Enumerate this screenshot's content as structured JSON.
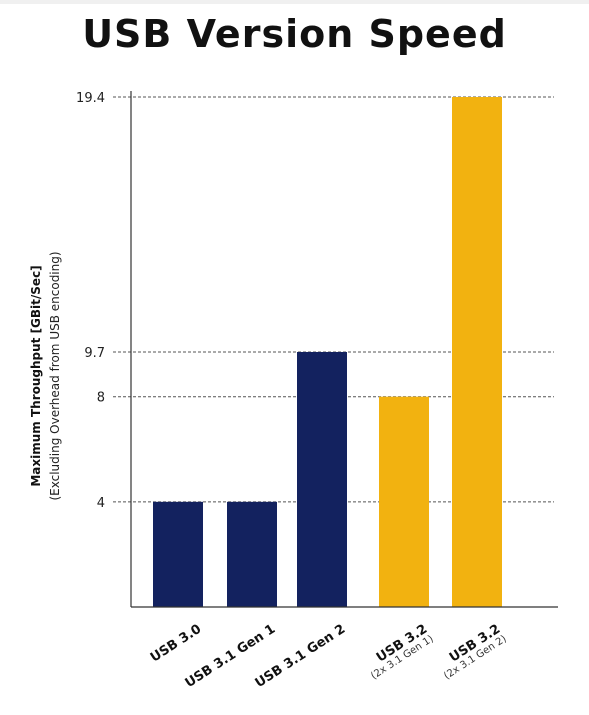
{
  "chart_data": {
    "type": "bar",
    "title": "USB Version Speed",
    "ylabel": "Maximum Throughput [GBit/Sec]",
    "ylabel_sub": "(Excluding Overhead from USB encoding)",
    "xlabel": "",
    "ylim": [
      0,
      19.4
    ],
    "ticks": [
      {
        "value": 4,
        "label": "4"
      },
      {
        "value": 8,
        "label": "8"
      },
      {
        "value": 9.7,
        "label": "9.7"
      },
      {
        "value": 19.4,
        "label": "19.4"
      }
    ],
    "grid": true,
    "categories": [
      {
        "label": "USB 3.0",
        "sub": ""
      },
      {
        "label": "USB 3.1 Gen 1",
        "sub": ""
      },
      {
        "label": "USB 3.1 Gen 2",
        "sub": ""
      },
      {
        "label": "USB 3.2",
        "sub": "(2x 3.1 Gen 1)"
      },
      {
        "label": "USB 3.2",
        "sub": "(2x 3.1 Gen 2)"
      }
    ],
    "values": [
      4,
      4,
      9.7,
      8,
      19.4
    ],
    "colors": [
      "#13225f",
      "#13225f",
      "#13225f",
      "#f2b210",
      "#f2b210"
    ]
  }
}
